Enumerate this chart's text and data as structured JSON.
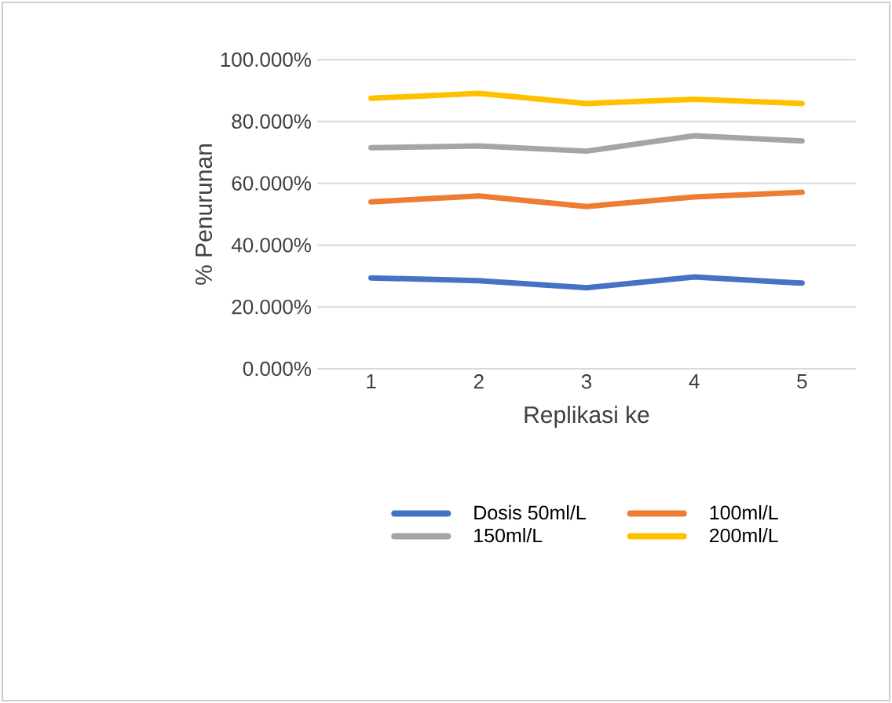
{
  "chart_data": {
    "type": "line",
    "xlabel": "Replikasi ke",
    "ylabel": "% Penurunan",
    "categories": [
      "1",
      "2",
      "3",
      "4",
      "5"
    ],
    "series": [
      {
        "name": "Dosis 50ml/L",
        "color": "#4472c4",
        "values": [
          29.4,
          28.5,
          26.2,
          29.7,
          27.7
        ]
      },
      {
        "name": "100ml/L",
        "color": "#ed7d31",
        "values": [
          54.0,
          55.9,
          52.5,
          55.6,
          57.1
        ]
      },
      {
        "name": "150ml/L",
        "color": "#a5a5a5",
        "values": [
          71.5,
          72.1,
          70.4,
          75.4,
          73.7
        ]
      },
      {
        "name": "200ml/L",
        "color": "#ffc000",
        "values": [
          87.5,
          89.1,
          85.8,
          87.2,
          85.8
        ]
      }
    ],
    "ylim": [
      0,
      100
    ],
    "yticks": [
      {
        "value": 0,
        "label": "0.000%"
      },
      {
        "value": 20,
        "label": "20.000%"
      },
      {
        "value": 40,
        "label": "40.000%"
      },
      {
        "value": 60,
        "label": "60.000%"
      },
      {
        "value": 80,
        "label": "80.000%"
      },
      {
        "value": 100,
        "label": "100.000%"
      }
    ],
    "grid": "y",
    "legend": "bottom",
    "marker": "none",
    "line_style": "solid"
  }
}
